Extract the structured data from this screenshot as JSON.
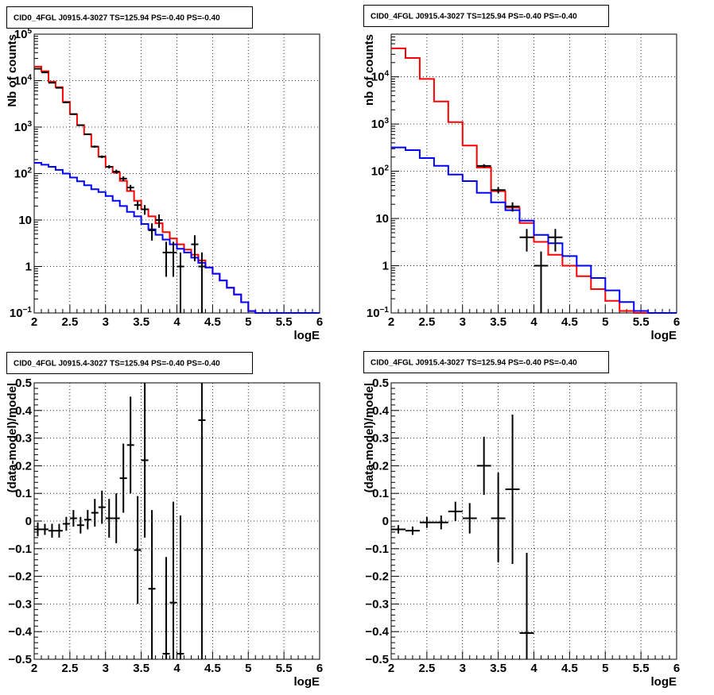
{
  "chart_data": [
    {
      "type": "line",
      "title": "CID0_4FGL J0915.4-3027 TS=125.94 PS=-0.40 PS=-0.40",
      "xlabel": "logE",
      "ylabel": "Nb of counts",
      "xlim": [
        2,
        6
      ],
      "ylim": [
        0.1,
        100000
      ],
      "yscale": "log",
      "grid": true,
      "x_ticks": [
        "2",
        "2.5",
        "3",
        "3.5",
        "4",
        "4.5",
        "5",
        "5.5",
        "6"
      ],
      "y_ticks": [
        {
          "value": 0.1,
          "base": "10",
          "exp": "−1"
        },
        {
          "value": 1,
          "label": "1"
        },
        {
          "value": 10,
          "label": "10"
        },
        {
          "value": 100,
          "base": "10",
          "exp": "2"
        },
        {
          "value": 1000,
          "base": "10",
          "exp": "3"
        },
        {
          "value": 10000,
          "base": "10",
          "exp": "4"
        },
        {
          "value": 100000,
          "base": "10",
          "exp": "5"
        }
      ],
      "bin_edges": [
        2.0,
        2.1,
        2.2,
        2.3,
        2.4,
        2.5,
        2.6,
        2.7,
        2.8,
        2.9,
        3.0,
        3.1,
        3.2,
        3.3,
        3.4,
        3.5,
        3.6,
        3.7,
        3.8,
        3.9,
        4.0,
        4.1,
        4.2,
        4.3,
        4.4,
        4.5,
        4.6,
        4.7,
        4.8,
        4.9,
        5.0,
        5.1,
        5.2,
        5.3,
        5.4,
        5.5,
        5.6,
        5.7,
        5.8,
        5.9,
        6.0
      ],
      "series": [
        {
          "color": "#ff0000",
          "style": "histogram",
          "values": [
            20000,
            16000,
            9500,
            7200,
            3500,
            1900,
            1100,
            700,
            380,
            230,
            140,
            105,
            70,
            42,
            26,
            17,
            12,
            8.5,
            5.5,
            4.0,
            3.0,
            2.3,
            1.8,
            1.35,
            0.95,
            0.7,
            0.5,
            0.35,
            0.25,
            0.17,
            0.11,
            0.1,
            0.1,
            0.1,
            0.1,
            0.1,
            0.1,
            0.1,
            0.1,
            0.1
          ]
        },
        {
          "color": "#0000ff",
          "style": "histogram",
          "values": [
            170,
            155,
            140,
            120,
            100,
            82,
            68,
            56,
            46,
            40,
            33,
            26,
            20,
            15,
            12,
            8.2,
            6.3,
            4.8,
            3.8,
            3.0,
            2.4,
            2.0,
            1.55,
            1.2,
            0.95,
            0.7,
            0.5,
            0.35,
            0.25,
            0.17,
            0.11,
            0.1,
            0.1,
            0.1,
            0.1,
            0.1,
            0.1,
            0.1,
            0.1,
            0.1
          ]
        },
        {
          "color": "#000000",
          "style": "points",
          "points": [
            {
              "x": 2.05,
              "y": 18000,
              "ylo": 17800,
              "yhi": 18200
            },
            {
              "x": 2.15,
              "y": 15000,
              "ylo": 14800,
              "yhi": 15200
            },
            {
              "x": 2.25,
              "y": 9000,
              "ylo": 8850,
              "yhi": 9150
            },
            {
              "x": 2.35,
              "y": 7000,
              "ylo": 6850,
              "yhi": 7150
            },
            {
              "x": 2.45,
              "y": 3400,
              "ylo": 3300,
              "yhi": 3500
            },
            {
              "x": 2.55,
              "y": 1900,
              "ylo": 1840,
              "yhi": 1960
            },
            {
              "x": 2.65,
              "y": 1100,
              "ylo": 1060,
              "yhi": 1140
            },
            {
              "x": 2.75,
              "y": 700,
              "ylo": 675,
              "yhi": 725
            },
            {
              "x": 2.85,
              "y": 380,
              "ylo": 360,
              "yhi": 400
            },
            {
              "x": 2.95,
              "y": 230,
              "ylo": 215,
              "yhi": 245
            },
            {
              "x": 3.05,
              "y": 140,
              "ylo": 128,
              "yhi": 152
            },
            {
              "x": 3.15,
              "y": 110,
              "ylo": 99,
              "yhi": 121
            },
            {
              "x": 3.25,
              "y": 78,
              "ylo": 69,
              "yhi": 87
            },
            {
              "x": 3.35,
              "y": 50,
              "ylo": 43,
              "yhi": 57
            },
            {
              "x": 3.45,
              "y": 21,
              "ylo": 16.5,
              "yhi": 25.5
            },
            {
              "x": 3.55,
              "y": 17,
              "ylo": 13,
              "yhi": 21
            },
            {
              "x": 3.65,
              "y": 6,
              "ylo": 3.6,
              "yhi": 8.5
            },
            {
              "x": 3.75,
              "y": 10,
              "ylo": 6.8,
              "yhi": 13.2
            },
            {
              "x": 3.85,
              "y": 2,
              "ylo": 0.6,
              "yhi": 3.4
            },
            {
              "x": 3.95,
              "y": 2,
              "ylo": 0.6,
              "yhi": 3.4
            },
            {
              "x": 4.05,
              "y": 1,
              "ylo": 0.1,
              "yhi": 2
            },
            {
              "x": 4.25,
              "y": 3,
              "ylo": 1.3,
              "yhi": 4.7
            },
            {
              "x": 4.35,
              "y": 1,
              "ylo": 0.1,
              "yhi": 2
            }
          ]
        }
      ]
    },
    {
      "type": "line",
      "title": "CID0_4FGL J0915.4-3027 TS=125.94 PS=-0.40 PS=-0.40",
      "xlabel": "logE",
      "ylabel": "nb of counts",
      "xlim": [
        2,
        6
      ],
      "ylim": [
        0.1,
        80000
      ],
      "yscale": "log",
      "grid": true,
      "x_ticks": [
        "2",
        "2.5",
        "3",
        "3.5",
        "4",
        "4.5",
        "5",
        "5.5",
        "6"
      ],
      "y_ticks": [
        {
          "value": 0.1,
          "base": "10",
          "exp": "−1"
        },
        {
          "value": 1,
          "label": "1"
        },
        {
          "value": 10,
          "label": "10"
        },
        {
          "value": 100,
          "base": "10",
          "exp": "2"
        },
        {
          "value": 1000,
          "base": "10",
          "exp": "3"
        },
        {
          "value": 10000,
          "base": "10",
          "exp": "4"
        }
      ],
      "bin_edges": [
        2.0,
        2.2,
        2.4,
        2.6,
        2.8,
        3.0,
        3.2,
        3.4,
        3.6,
        3.8,
        4.0,
        4.2,
        4.4,
        4.6,
        4.8,
        5.0,
        5.2,
        5.4,
        5.6,
        5.8,
        6.0
      ],
      "series": [
        {
          "color": "#ff0000",
          "style": "histogram",
          "values": [
            40000,
            25000,
            9000,
            3000,
            1100,
            350,
            120,
            38,
            17,
            8,
            3.2,
            1.7,
            1.0,
            0.6,
            0.32,
            0.18,
            0.11,
            0.1,
            0.1,
            0.1
          ]
        },
        {
          "color": "#0000ff",
          "style": "histogram",
          "values": [
            320,
            280,
            190,
            130,
            85,
            62,
            35,
            22,
            15,
            9,
            4.5,
            3.0,
            1.6,
            1.0,
            0.55,
            0.3,
            0.17,
            0.11,
            0.1,
            0.1
          ]
        },
        {
          "color": "#000000",
          "style": "points",
          "points": [
            {
              "x": 3.3,
              "y": 130,
              "ylo": 119,
              "yhi": 141
            },
            {
              "x": 3.5,
              "y": 40,
              "ylo": 34,
              "yhi": 46
            },
            {
              "x": 3.7,
              "y": 18,
              "ylo": 14,
              "yhi": 22
            },
            {
              "x": 3.9,
              "y": 4,
              "ylo": 2,
              "yhi": 6
            },
            {
              "x": 4.1,
              "y": 1,
              "ylo": 0.1,
              "yhi": 2
            },
            {
              "x": 4.3,
              "y": 4,
              "ylo": 2,
              "yhi": 6
            }
          ]
        }
      ]
    },
    {
      "type": "scatter",
      "title": "CID0_4FGL J0915.4-3027 TS=125.94 PS=-0.40 PS=-0.40",
      "xlabel": "logE",
      "ylabel": "(data-model)/model",
      "xlim": [
        2,
        6
      ],
      "ylim": [
        -0.5,
        0.5
      ],
      "grid": true,
      "x_ticks": [
        "2",
        "2.5",
        "3",
        "3.5",
        "4",
        "4.5",
        "5",
        "5.5",
        "6"
      ],
      "y_ticks": [
        "−0.5",
        "−0.4",
        "−0.3",
        "−0.2",
        "−0.1",
        "0",
        "0.1",
        "0.2",
        "0.3",
        "0.4",
        "0.5"
      ],
      "bin_half_width": 0.05,
      "series": [
        {
          "color": "#000000",
          "points": [
            {
              "x": 2.05,
              "y": -0.03,
              "ylo": -0.055,
              "yhi": -0.005
            },
            {
              "x": 2.15,
              "y": -0.03,
              "ylo": -0.05,
              "yhi": -0.01
            },
            {
              "x": 2.25,
              "y": -0.035,
              "ylo": -0.06,
              "yhi": -0.01
            },
            {
              "x": 2.35,
              "y": -0.035,
              "ylo": -0.06,
              "yhi": -0.01
            },
            {
              "x": 2.45,
              "y": -0.01,
              "ylo": -0.035,
              "yhi": 0.015
            },
            {
              "x": 2.55,
              "y": 0.01,
              "ylo": -0.02,
              "yhi": 0.04
            },
            {
              "x": 2.65,
              "y": -0.015,
              "ylo": -0.045,
              "yhi": 0.015
            },
            {
              "x": 2.75,
              "y": 0.005,
              "ylo": -0.03,
              "yhi": 0.04
            },
            {
              "x": 2.85,
              "y": 0.03,
              "ylo": -0.02,
              "yhi": 0.08
            },
            {
              "x": 2.95,
              "y": 0.05,
              "ylo": -0.01,
              "yhi": 0.11
            },
            {
              "x": 3.05,
              "y": 0.01,
              "ylo": -0.06,
              "yhi": 0.08
            },
            {
              "x": 3.15,
              "y": 0.01,
              "ylo": -0.08,
              "yhi": 0.1
            },
            {
              "x": 3.25,
              "y": 0.155,
              "ylo": 0.03,
              "yhi": 0.28
            },
            {
              "x": 3.35,
              "y": 0.275,
              "ylo": 0.1,
              "yhi": 0.45
            },
            {
              "x": 3.45,
              "y": -0.105,
              "ylo": -0.3,
              "yhi": 0.09
            },
            {
              "x": 3.55,
              "y": 0.22,
              "ylo": -0.06,
              "yhi": 0.5
            },
            {
              "x": 3.65,
              "y": -0.245,
              "ylo": -0.5,
              "yhi": 0.04
            },
            {
              "x": 3.85,
              "y": -0.48,
              "ylo": -0.5,
              "yhi": -0.13
            },
            {
              "x": 3.95,
              "y": -0.295,
              "ylo": -0.5,
              "yhi": 0.07
            },
            {
              "x": 4.05,
              "y": -0.48,
              "ylo": -0.5,
              "yhi": 0.02
            },
            {
              "x": 4.35,
              "y": 0.365,
              "ylo": -0.5,
              "yhi": 0.5
            }
          ]
        }
      ]
    },
    {
      "type": "scatter",
      "title": "CID0_4FGL J0915.4-3027 TS=125.94 PS=-0.40 PS=-0.40",
      "xlabel": "logE",
      "ylabel": "(data-model)/model",
      "xlim": [
        2,
        6
      ],
      "ylim": [
        -0.5,
        0.5
      ],
      "grid": true,
      "x_ticks": [
        "2",
        "2.5",
        "3",
        "3.5",
        "4",
        "4.5",
        "5",
        "5.5",
        "6"
      ],
      "y_ticks": [
        "−0.5",
        "−0.4",
        "−0.3",
        "−0.2",
        "−0.1",
        "0",
        "0.1",
        "0.2",
        "0.3",
        "0.4",
        "0.5"
      ],
      "bin_half_width": 0.1,
      "series": [
        {
          "color": "#000000",
          "points": [
            {
              "x": 2.1,
              "y": -0.03,
              "ylo": -0.045,
              "yhi": -0.015
            },
            {
              "x": 2.3,
              "y": -0.035,
              "ylo": -0.05,
              "yhi": -0.02
            },
            {
              "x": 2.5,
              "y": -0.005,
              "ylo": -0.025,
              "yhi": 0.015
            },
            {
              "x": 2.7,
              "y": -0.005,
              "ylo": -0.03,
              "yhi": 0.02
            },
            {
              "x": 2.9,
              "y": 0.035,
              "ylo": 0.0,
              "yhi": 0.07
            },
            {
              "x": 3.1,
              "y": 0.01,
              "ylo": -0.045,
              "yhi": 0.065
            },
            {
              "x": 3.3,
              "y": 0.2,
              "ylo": 0.095,
              "yhi": 0.305
            },
            {
              "x": 3.5,
              "y": 0.01,
              "ylo": -0.15,
              "yhi": 0.175
            },
            {
              "x": 3.7,
              "y": 0.115,
              "ylo": -0.155,
              "yhi": 0.385
            },
            {
              "x": 3.9,
              "y": -0.405,
              "ylo": -0.5,
              "yhi": -0.115
            }
          ]
        }
      ]
    }
  ]
}
